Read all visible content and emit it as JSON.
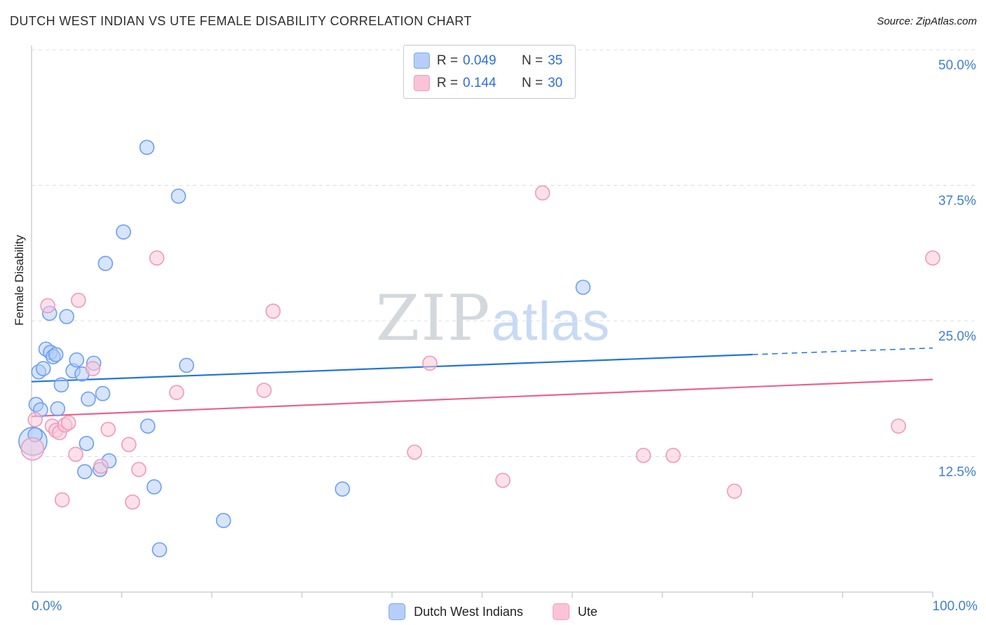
{
  "header": {
    "title": "DUTCH WEST INDIAN VS UTE FEMALE DISABILITY CORRELATION CHART",
    "source": "Source: ZipAtlas.com"
  },
  "legend_box": {
    "series": [
      {
        "r_label": "R =",
        "r_value": "0.049",
        "n_label": "N =",
        "n_value": "35"
      },
      {
        "r_label": "R =",
        "r_value": "0.144",
        "n_label": "N =",
        "n_value": "30"
      }
    ]
  },
  "watermark": {
    "part1": "ZIP",
    "part2": "atlas"
  },
  "axes": {
    "y_label": "Female Disability",
    "x_left_label": "0.0%",
    "x_right_label": "100.0%"
  },
  "colors": {
    "blue_fill": "rgba(173,203,248,0.5)",
    "blue_stroke": "#6e9ef0",
    "pink_fill": "rgba(250,200,218,0.55)",
    "pink_stroke": "#f09ab8",
    "blue_trend": "#2474d8",
    "pink_trend": "#e8638f",
    "tick_label": "#4080c8",
    "grid": "#dcdcdc",
    "axis": "#c8c8c8"
  },
  "chart_data": {
    "type": "scatter",
    "title": "DUTCH WEST INDIAN VS UTE FEMALE DISABILITY CORRELATION CHART",
    "xlabel": "",
    "ylabel": "Female Disability",
    "xlim": [
      0,
      100
    ],
    "ylim": [
      0,
      50
    ],
    "grid": "dashed-horizontal",
    "legend_position": "bottom-center",
    "y_ticks": [
      {
        "value": 50,
        "label": "50.0%"
      },
      {
        "value": 37.5,
        "label": "37.5%"
      },
      {
        "value": 25,
        "label": "25.0%"
      },
      {
        "value": 12.5,
        "label": "12.5%"
      }
    ],
    "x_tick_values": [
      10,
      20,
      30,
      40,
      50,
      60,
      70,
      80,
      90,
      100
    ],
    "x_left_label": "0.0%",
    "x_right_label": "100.0%",
    "series": [
      {
        "name": "Dutch West Indians",
        "R": 0.049,
        "N": 35,
        "points": [
          [
            0.15,
            13.9,
            20
          ],
          [
            0.4,
            14.5
          ],
          [
            0.5,
            17.3
          ],
          [
            0.8,
            20.3
          ],
          [
            1.0,
            16.8
          ],
          [
            1.3,
            20.6
          ],
          [
            1.6,
            22.4
          ],
          [
            2.0,
            25.7
          ],
          [
            2.1,
            22.1
          ],
          [
            2.4,
            21.7
          ],
          [
            2.7,
            21.9
          ],
          [
            2.9,
            16.9
          ],
          [
            3.3,
            19.1
          ],
          [
            3.9,
            25.4
          ],
          [
            4.6,
            20.4
          ],
          [
            5.0,
            21.4
          ],
          [
            5.6,
            20.1
          ],
          [
            5.9,
            11.1
          ],
          [
            6.1,
            13.7
          ],
          [
            6.3,
            17.8
          ],
          [
            6.9,
            21.1
          ],
          [
            7.6,
            11.3
          ],
          [
            7.9,
            18.3
          ],
          [
            8.2,
            30.3
          ],
          [
            8.6,
            12.1
          ],
          [
            10.2,
            33.2
          ],
          [
            12.8,
            41.0
          ],
          [
            12.9,
            15.3
          ],
          [
            13.6,
            9.7
          ],
          [
            14.2,
            3.9
          ],
          [
            16.3,
            36.5
          ],
          [
            17.2,
            20.9
          ],
          [
            21.3,
            6.6
          ],
          [
            34.5,
            9.5
          ],
          [
            61.2,
            28.1
          ]
        ],
        "trend": {
          "x1": 0,
          "y1": 19.4,
          "x2": 80,
          "y2": 21.9,
          "dash": {
            "x1": 80,
            "y1": 21.9,
            "x2": 100,
            "y2": 22.5
          }
        }
      },
      {
        "name": "Ute",
        "R": 0.144,
        "N": 30,
        "points": [
          [
            0.1,
            13.2,
            16
          ],
          [
            0.4,
            15.9
          ],
          [
            1.8,
            26.4
          ],
          [
            2.3,
            15.3
          ],
          [
            2.7,
            14.9
          ],
          [
            3.1,
            14.7
          ],
          [
            3.4,
            8.5
          ],
          [
            3.7,
            15.4
          ],
          [
            4.1,
            15.6
          ],
          [
            4.9,
            12.7
          ],
          [
            5.2,
            26.9
          ],
          [
            6.8,
            20.6
          ],
          [
            7.7,
            11.6
          ],
          [
            8.5,
            15.0
          ],
          [
            10.8,
            13.6
          ],
          [
            11.2,
            8.3
          ],
          [
            11.9,
            11.3
          ],
          [
            13.9,
            30.8
          ],
          [
            16.1,
            18.4
          ],
          [
            25.8,
            18.6
          ],
          [
            26.8,
            25.9
          ],
          [
            42.5,
            12.9
          ],
          [
            44.2,
            21.1
          ],
          [
            52.3,
            10.3
          ],
          [
            56.7,
            36.8
          ],
          [
            67.9,
            12.6
          ],
          [
            71.2,
            12.6
          ],
          [
            78.0,
            9.3
          ],
          [
            96.2,
            15.3
          ],
          [
            100.0,
            30.8
          ]
        ],
        "trend": {
          "x1": 0,
          "y1": 16.2,
          "x2": 100,
          "y2": 19.6
        }
      }
    ]
  },
  "footer_legend": {
    "items": [
      {
        "label": "Dutch West Indians"
      },
      {
        "label": "Ute"
      }
    ]
  }
}
